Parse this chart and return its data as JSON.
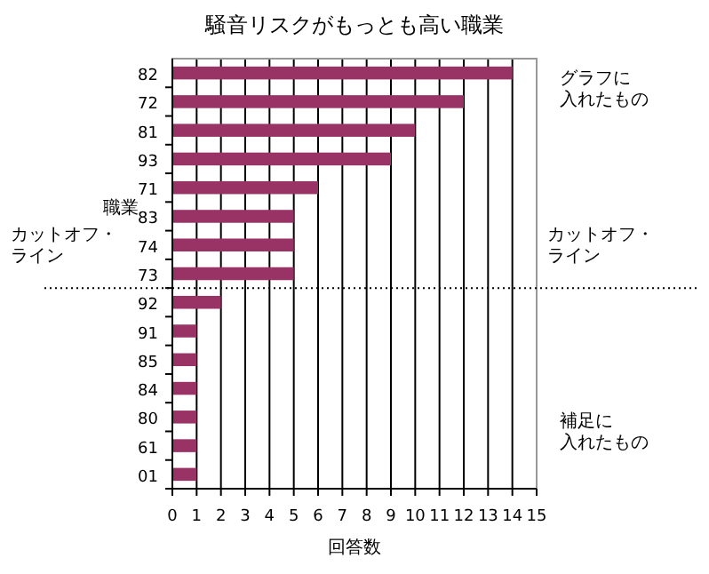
{
  "chart_data": {
    "type": "bar",
    "orientation": "horizontal",
    "title": "騒音リスクがもっとも高い職業",
    "xlabel": "回答数",
    "ylabel": "職業",
    "categories": [
      "82",
      "72",
      "81",
      "93",
      "71",
      "83",
      "74",
      "73",
      "92",
      "91",
      "85",
      "84",
      "80",
      "61",
      "01"
    ],
    "values": [
      14,
      12,
      10,
      9,
      6,
      5,
      5,
      5,
      2,
      1,
      1,
      1,
      1,
      1,
      1
    ],
    "color": "#993366",
    "xlim": [
      0,
      15
    ],
    "xticks": [
      0,
      1,
      2,
      3,
      4,
      5,
      6,
      7,
      8,
      9,
      10,
      11,
      12,
      13,
      14,
      15
    ],
    "grid": "x",
    "ref_lines": [
      {
        "axis": "y",
        "value": "73",
        "label": "カットオフ・ライン",
        "line_style": "dotted"
      }
    ],
    "annotations": [
      "グラフに入れたもの",
      "補足に入れたもの"
    ]
  }
}
